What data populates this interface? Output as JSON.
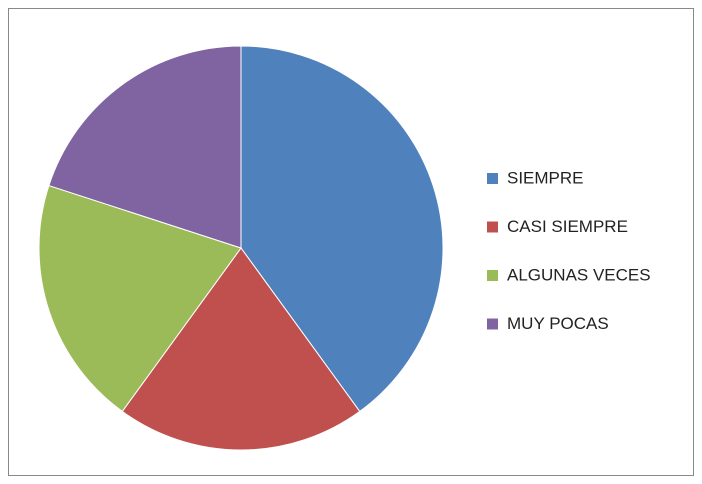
{
  "chart_data": {
    "type": "pie",
    "categories": [
      "SIEMPRE",
      "CASI SIEMPRE",
      "ALGUNAS VECES",
      "MUY POCAS"
    ],
    "values": [
      40,
      20,
      20,
      20
    ],
    "colors": [
      "#4f81bd",
      "#c0504d",
      "#9bbb59",
      "#8064a2"
    ],
    "legend": "right"
  }
}
